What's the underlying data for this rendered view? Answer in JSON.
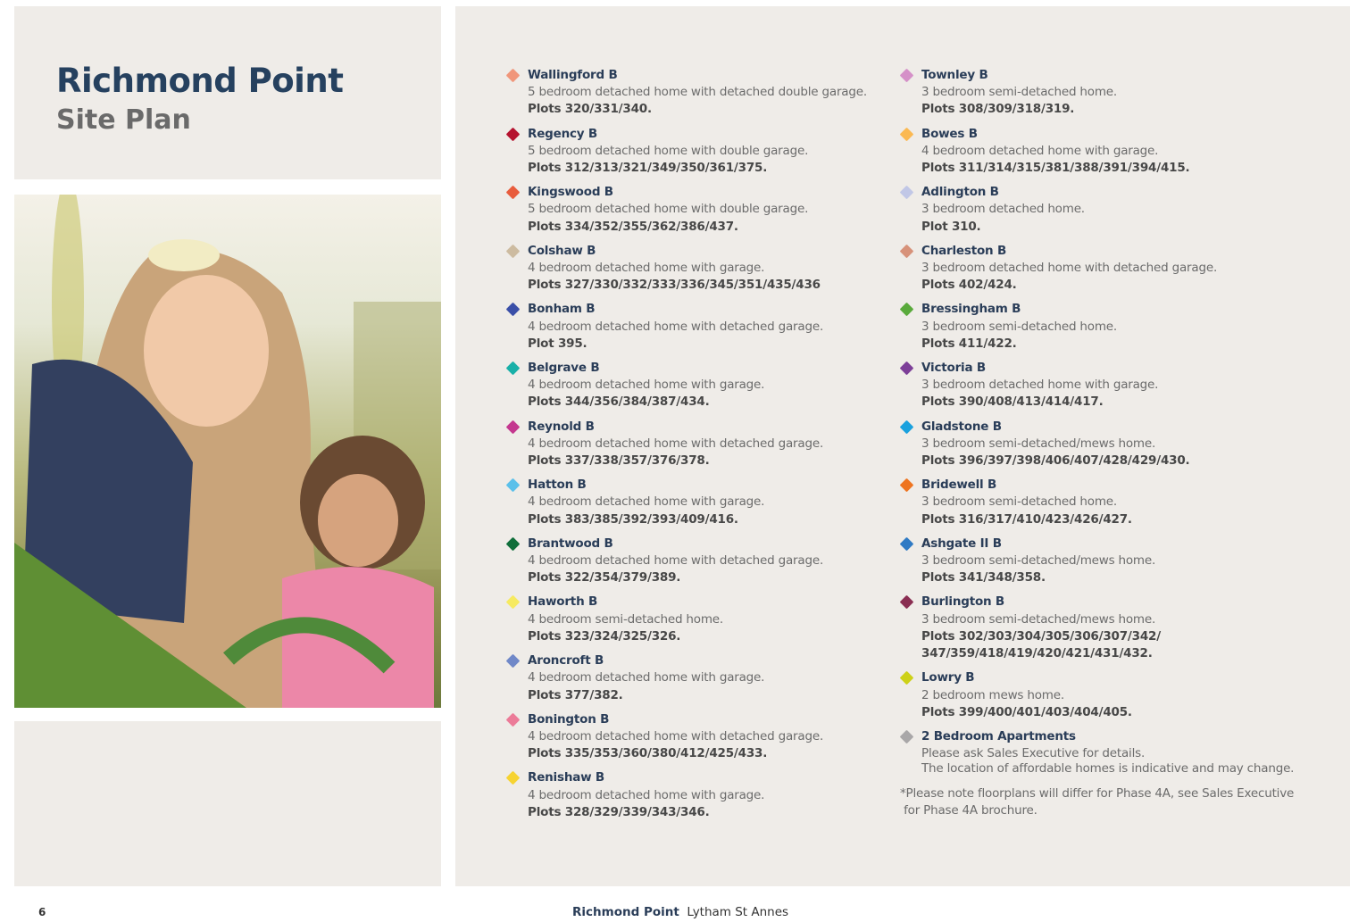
{
  "header": {
    "title": "Richmond Point",
    "subtitle": "Site Plan"
  },
  "photo": {
    "icon": "photo-children-playground"
  },
  "legend": {
    "left": [
      {
        "name": "Wallingford B",
        "desc": "5 bedroom detached home with detached double garage.",
        "plots": [
          "Plots 320/331/340."
        ],
        "color": "#f0967a"
      },
      {
        "name": "Regency B",
        "desc": "5 bedroom detached home with double garage.",
        "plots": [
          "Plots 312/313/321/349/350/361/375."
        ],
        "color": "#b5122e"
      },
      {
        "name": "Kingswood B",
        "desc": "5 bedroom detached home with double garage.",
        "plots": [
          "Plots 334/352/355/362/386/437."
        ],
        "color": "#e85c3c"
      },
      {
        "name": "Colshaw B",
        "desc": "4 bedroom detached home with garage.",
        "plots": [
          "Plots 327/330/332/333/336/345/351/435/436"
        ],
        "color": "#cdbba0"
      },
      {
        "name": "Bonham B",
        "desc": "4 bedroom detached home with detached garage.",
        "plots": [
          "Plot 395."
        ],
        "color": "#3a4fa8"
      },
      {
        "name": "Belgrave B",
        "desc": "4 bedroom detached home with garage.",
        "plots": [
          "Plots 344/356/384/387/434."
        ],
        "color": "#19b0a8"
      },
      {
        "name": "Reynold B",
        "desc": "4 bedroom detached home with detached garage.",
        "plots": [
          "Plots 337/338/357/376/378."
        ],
        "color": "#c4378f"
      },
      {
        "name": "Hatton B",
        "desc": "4 bedroom detached home with garage.",
        "plots": [
          "Plots 383/385/392/393/409/416."
        ],
        "color": "#5bc0ea"
      },
      {
        "name": "Brantwood B",
        "desc": "4 bedroom detached home with detached garage.",
        "plots": [
          "Plots 322/354/379/389."
        ],
        "color": "#0f6e3a"
      },
      {
        "name": "Haworth B",
        "desc": "4 bedroom semi-detached home.",
        "plots": [
          "Plots 323/324/325/326."
        ],
        "color": "#f6ea60"
      },
      {
        "name": "Aroncroft B",
        "desc": "4 bedroom detached home with garage.",
        "plots": [
          "Plots 377/382."
        ],
        "color": "#7088c8"
      },
      {
        "name": "Bonington B",
        "desc": "4 bedroom detached home with detached garage.",
        "plots": [
          "Plots 335/353/360/380/412/425/433."
        ],
        "color": "#ec7b98"
      },
      {
        "name": "Renishaw B",
        "desc": "4 bedroom detached home with garage.",
        "plots": [
          "Plots 328/329/339/343/346."
        ],
        "color": "#f6d332"
      }
    ],
    "right": [
      {
        "name": "Townley B",
        "desc": "3 bedroom semi-detached home.",
        "plots": [
          "Plots 308/309/318/319."
        ],
        "color": "#d591c8"
      },
      {
        "name": "Bowes B",
        "desc": "4 bedroom detached home with garage.",
        "plots": [
          "Plots 311/314/315/381/388/391/394/415."
        ],
        "color": "#fbb952"
      },
      {
        "name": "Adlington B",
        "desc": "3 bedroom detached home.",
        "plots": [
          "Plot 310."
        ],
        "color": "#c1c7e6"
      },
      {
        "name": "Charleston B",
        "desc": "3 bedroom detached home with detached garage.",
        "plots": [
          "Plots 402/424."
        ],
        "color": "#d7927a"
      },
      {
        "name": "Bressingham B",
        "desc": "3 bedroom semi-detached home.",
        "plots": [
          "Plots 411/422."
        ],
        "color": "#5aaa3c"
      },
      {
        "name": "Victoria B",
        "desc": "3 bedroom detached home with garage.",
        "plots": [
          "Plots 390/408/413/414/417."
        ],
        "color": "#7d3f98"
      },
      {
        "name": "Gladstone B",
        "desc": "3 bedroom semi-detached/mews home.",
        "plots": [
          "Plots 396/397/398/406/407/428/429/430."
        ],
        "color": "#1aa1de"
      },
      {
        "name": "Bridewell B",
        "desc": "3 bedroom semi-detached home.",
        "plots": [
          "Plots 316/317/410/423/426/427."
        ],
        "color": "#ee7420"
      },
      {
        "name": "Ashgate II B",
        "desc": "3 bedroom semi-detached/mews home.",
        "plots": [
          "Plots 341/348/358."
        ],
        "color": "#2f7ac4"
      },
      {
        "name": "Burlington B",
        "desc": "3 bedroom semi-detached/mews home.",
        "plots": [
          "Plots 302/303/304/305/306/307/342/",
          "347/359/418/419/420/421/431/432."
        ],
        "color": "#8a2e52"
      },
      {
        "name": "Lowry B",
        "desc": "2 bedroom mews home.",
        "plots": [
          "Plots 399/400/401/403/404/405."
        ],
        "color": "#cdd118"
      },
      {
        "name": "2 Bedroom Apartments",
        "desc": "Please ask Sales Executive for details.",
        "plots": [],
        "color": "#a9a7a8"
      }
    ],
    "note_affordable": "The location of affordable homes is indicative and may change.",
    "note_floorplans_1": "*Please note floorplans will differ for Phase 4A, see Sales Executive",
    "note_floorplans_2": " for Phase 4A brochure."
  },
  "footer": {
    "page_number": "6",
    "brand": "Richmond Point",
    "location": "Lytham St Annes"
  }
}
